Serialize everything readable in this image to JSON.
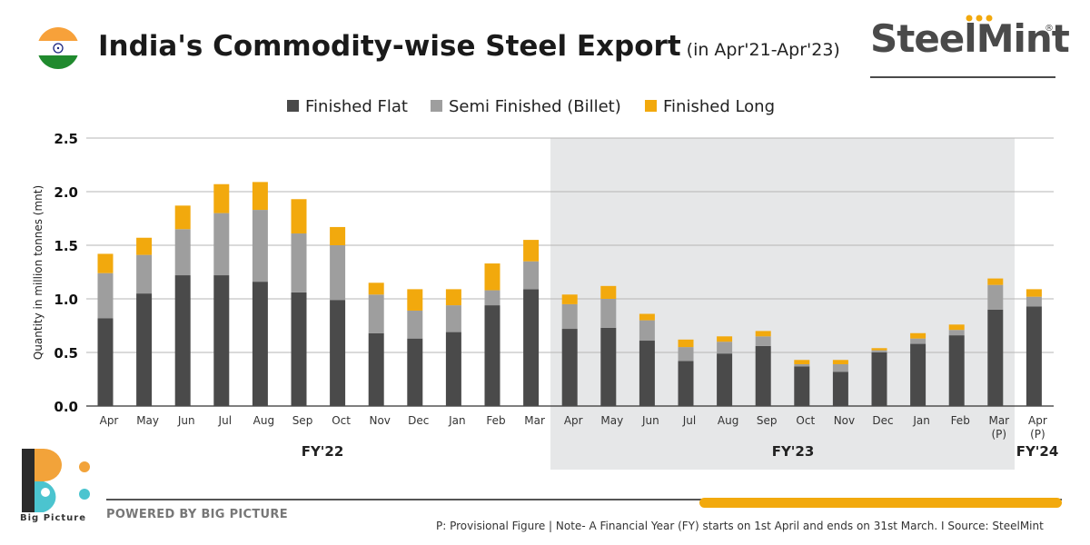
{
  "header": {
    "title": "India's Commodity-wise Steel Export",
    "subtitle": "(in Apr'21-Apr'23)",
    "brand": "SteelMint",
    "brand_reg": "®"
  },
  "footer": {
    "powered_by": "POWERED BY BIG PICTURE",
    "note": "P: Provisional Figure | Note- A Financial Year (FY) starts on 1st April and ends on 31st March.  I  Source: SteelMint",
    "logo_text": "Big Picture"
  },
  "colors": {
    "finished_flat": "#4a4a4a",
    "semi_finished": "#9e9e9e",
    "finished_long": "#f2a90d",
    "fy23_shade": "#e6e7e8",
    "flag_saffron": "#f7a13a",
    "flag_green": "#208a2e",
    "chakra": "#1a237e",
    "logo_orange": "#f2a33a",
    "logo_teal": "#4bc4cf",
    "logo_dark": "#2b2b2b"
  },
  "icons": {
    "flag": "india-flag-icon",
    "logo": "big-picture-logo-icon"
  },
  "chart_data": {
    "type": "bar",
    "stacked": true,
    "ylabel": "Quantity in million tonnes (mnt)",
    "ylim": [
      0,
      2.5
    ],
    "yticks": [
      "0.0",
      "0.5",
      "1.0",
      "1.5",
      "2.0",
      "2.5"
    ],
    "grid": true,
    "legend_position": "top-center",
    "categories": [
      "Apr",
      "May",
      "Jun",
      "Jul",
      "Aug",
      "Sep",
      "Oct",
      "Nov",
      "Dec",
      "Jan",
      "Feb",
      "Mar",
      "Apr",
      "May",
      "Jun",
      "Jul",
      "Aug",
      "Sep",
      "Oct",
      "Nov",
      "Dec",
      "Jan",
      "Feb",
      "Mar\n(P)",
      "Apr\n(P)"
    ],
    "series": [
      {
        "name": "Finished Flat",
        "values": [
          0.82,
          1.05,
          1.22,
          1.22,
          1.16,
          1.06,
          0.99,
          0.68,
          0.63,
          0.69,
          0.94,
          1.09,
          0.72,
          0.73,
          0.61,
          0.42,
          0.49,
          0.56,
          0.37,
          0.32,
          0.5,
          0.58,
          0.66,
          0.9,
          0.93
        ]
      },
      {
        "name": "Semi Finished (Billet)",
        "values": [
          0.42,
          0.36,
          0.43,
          0.58,
          0.67,
          0.55,
          0.51,
          0.36,
          0.26,
          0.25,
          0.14,
          0.26,
          0.23,
          0.27,
          0.19,
          0.13,
          0.11,
          0.09,
          0.02,
          0.07,
          0.02,
          0.05,
          0.05,
          0.23,
          0.09
        ]
      },
      {
        "name": "Finished Long",
        "values": [
          0.18,
          0.16,
          0.22,
          0.27,
          0.26,
          0.32,
          0.17,
          0.11,
          0.2,
          0.15,
          0.25,
          0.2,
          0.09,
          0.12,
          0.06,
          0.07,
          0.05,
          0.05,
          0.04,
          0.04,
          0.02,
          0.05,
          0.05,
          0.06,
          0.07
        ]
      }
    ],
    "fiscal_years": [
      {
        "label": "FY'22",
        "start": 0,
        "end": 11
      },
      {
        "label": "FY'23",
        "start": 12,
        "end": 23
      },
      {
        "label": "FY'24",
        "start": 24,
        "end": 24
      }
    ]
  }
}
